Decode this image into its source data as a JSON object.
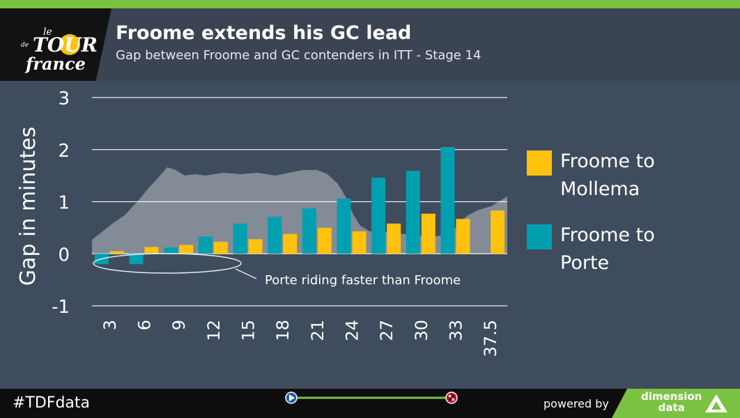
{
  "header": {
    "title": "Froome extends his GC lead",
    "subtitle": "Gap between Froome and GC contenders in ITT - Stage 14"
  },
  "logo": {
    "name": "tour-de-france-logo",
    "text": "le TOUR de FRANCE"
  },
  "footer": {
    "hashtag": "#TDFdata",
    "powered_by": "powered by",
    "brand_line1": "dimension",
    "brand_line2": "data"
  },
  "colors": {
    "mollema": "#ffc20e",
    "porte": "#00a0b0",
    "profile": "#8f97a0",
    "background": "#3f4c5e",
    "accent": "#7cc242"
  },
  "chart_data": {
    "type": "bar",
    "ylabel": "Gap in minutes",
    "ylim": [
      -1,
      3
    ],
    "yticks": [
      -1,
      0,
      1,
      2,
      3
    ],
    "grid": true,
    "legend_position": "right",
    "categories": [
      "3",
      "6",
      "9",
      "12",
      "15",
      "18",
      "21",
      "24",
      "27",
      "30",
      "33",
      "37.5"
    ],
    "series": [
      {
        "name": "Froome to Mollema",
        "values": [
          0.05,
          0.13,
          0.17,
          0.23,
          0.28,
          0.38,
          0.5,
          0.43,
          0.58,
          0.77,
          0.67,
          0.83
        ]
      },
      {
        "name": "Froome to Porte",
        "values": [
          -0.2,
          -0.2,
          0.12,
          0.33,
          0.58,
          0.71,
          0.87,
          1.06,
          1.46,
          1.59,
          2.05,
          0
        ]
      }
    ],
    "legend_labels": [
      [
        "Froome to",
        "Mollema"
      ],
      [
        "Froome to",
        "Porte"
      ]
    ],
    "annotations": [
      {
        "text": "Porte riding faster than Froome"
      }
    ]
  }
}
